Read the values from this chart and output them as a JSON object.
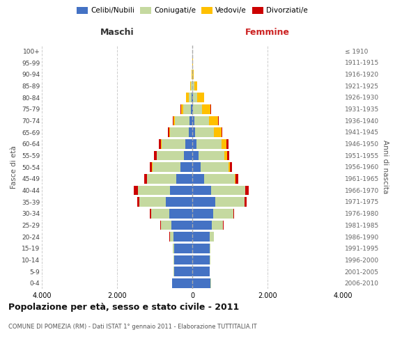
{
  "age_groups": [
    "0-4",
    "5-9",
    "10-14",
    "15-19",
    "20-24",
    "25-29",
    "30-34",
    "35-39",
    "40-44",
    "45-49",
    "50-54",
    "55-59",
    "60-64",
    "65-69",
    "70-74",
    "75-79",
    "80-84",
    "85-89",
    "90-94",
    "95-99",
    "100+"
  ],
  "birth_years": [
    "2006-2010",
    "2001-2005",
    "1996-2000",
    "1991-1995",
    "1986-1990",
    "1981-1985",
    "1976-1980",
    "1971-1975",
    "1966-1970",
    "1961-1965",
    "1956-1960",
    "1951-1955",
    "1946-1950",
    "1941-1945",
    "1936-1940",
    "1931-1935",
    "1926-1930",
    "1921-1925",
    "1916-1920",
    "1911-1915",
    "≤ 1910"
  ],
  "colors": {
    "celibi": "#4472c4",
    "coniugati": "#c5d9a0",
    "vedovi": "#ffc000",
    "divorziati": "#cc0000"
  },
  "maschi": {
    "celibi": [
      530,
      490,
      490,
      490,
      500,
      560,
      620,
      700,
      600,
      420,
      310,
      230,
      180,
      100,
      75,
      40,
      20,
      8,
      3,
      2,
      2
    ],
    "coniugati": [
      1,
      2,
      5,
      20,
      100,
      280,
      480,
      700,
      850,
      780,
      750,
      710,
      640,
      490,
      380,
      200,
      80,
      25,
      5,
      2,
      1
    ],
    "vedovi": [
      0,
      0,
      0,
      0,
      0,
      0,
      1,
      2,
      3,
      5,
      8,
      10,
      20,
      30,
      45,
      60,
      60,
      20,
      5,
      1,
      0
    ],
    "divorziati": [
      0,
      0,
      0,
      0,
      2,
      5,
      30,
      70,
      100,
      80,
      55,
      75,
      55,
      25,
      15,
      8,
      3,
      1,
      0,
      0,
      0
    ]
  },
  "femmine": {
    "celibi": [
      490,
      465,
      470,
      470,
      460,
      510,
      560,
      620,
      500,
      320,
      220,
      160,
      120,
      70,
      50,
      25,
      15,
      8,
      3,
      2,
      2
    ],
    "coniugati": [
      1,
      2,
      5,
      20,
      110,
      310,
      530,
      760,
      900,
      810,
      750,
      700,
      660,
      510,
      400,
      240,
      120,
      40,
      10,
      3,
      1
    ],
    "vedovi": [
      0,
      0,
      0,
      0,
      0,
      1,
      1,
      3,
      8,
      15,
      35,
      70,
      130,
      200,
      240,
      220,
      180,
      80,
      20,
      5,
      2
    ],
    "divorziati": [
      0,
      0,
      0,
      0,
      1,
      5,
      25,
      70,
      100,
      80,
      55,
      60,
      50,
      20,
      15,
      10,
      5,
      2,
      1,
      0,
      0
    ]
  },
  "title": "Popolazione per età, sesso e stato civile - 2011",
  "subtitle": "COMUNE DI POMEZIA (RM) - Dati ISTAT 1° gennaio 2011 - Elaborazione TUTTITALIA.IT",
  "xlabel_left": "Maschi",
  "xlabel_right": "Femmine",
  "ylabel_left": "Fasce di età",
  "ylabel_right": "Anni di nascita",
  "xlim": 4000,
  "legend_labels": [
    "Celibi/Nubili",
    "Coniugati/e",
    "Vedovi/e",
    "Divorziati/e"
  ],
  "background_color": "#ffffff",
  "grid_color": "#cccccc"
}
